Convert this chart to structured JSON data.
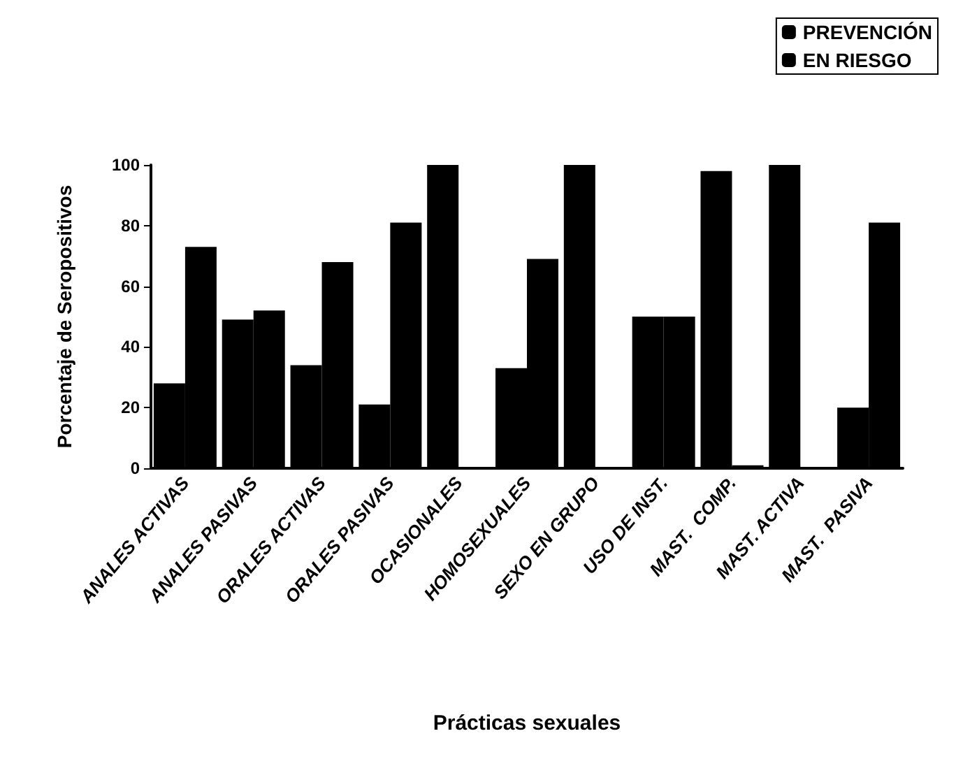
{
  "chart_data": {
    "type": "bar",
    "xlabel": "Prácticas sexuales",
    "ylabel": "Porcentaje de Seropositivos",
    "categories": [
      "ANALES ACTIVAS",
      "ANALES PASIVAS",
      "ORALES ACTIVAS",
      "ORALES PASIVAS",
      "OCASIONALES",
      "HOMOSEXUALES",
      "SEXO EN GRUPO",
      "USO DE INST.",
      "MAST.  COMP.",
      "MAST. ACTIVA",
      "MAST.  PASIVA"
    ],
    "series": [
      {
        "name": "PREVENCIÓN",
        "color": "#000000",
        "values": [
          28,
          49,
          34,
          21,
          100,
          33,
          100,
          50,
          98,
          100,
          20
        ]
      },
      {
        "name": "EN RIESGO",
        "color": "#000000",
        "values": [
          73,
          52,
          68,
          81,
          0,
          69,
          0,
          50,
          1,
          0,
          81
        ]
      }
    ],
    "ylim": [
      0,
      100
    ],
    "yticks": [
      0,
      20,
      40,
      60,
      80,
      100
    ],
    "grid": false,
    "legend": "top right"
  }
}
